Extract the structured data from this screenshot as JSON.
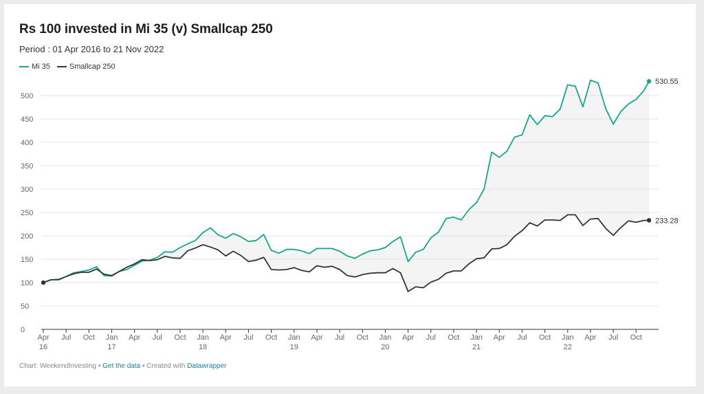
{
  "title": "Rs 100 invested in Mi 35 (v) Smallcap 250",
  "subtitle": "Period : 01 Apr 2016 to 21 Nov 2022",
  "footer": {
    "prefix": "Chart: WeekendInvesting • ",
    "get_data": "Get the data",
    "middle": " • Created with ",
    "tool": "Datawrapper"
  },
  "chart_data": {
    "type": "line",
    "ylim": [
      0,
      550
    ],
    "yticks": [
      0,
      50,
      100,
      150,
      200,
      250,
      300,
      350,
      400,
      450,
      500
    ],
    "grid": true,
    "legend_position": "top-left",
    "xticks": [
      {
        "m": 0,
        "l1": "Apr",
        "l2": "16"
      },
      {
        "m": 3,
        "l1": "Jul",
        "l2": ""
      },
      {
        "m": 6,
        "l1": "Oct",
        "l2": ""
      },
      {
        "m": 9,
        "l1": "Jan",
        "l2": "17"
      },
      {
        "m": 12,
        "l1": "Apr",
        "l2": ""
      },
      {
        "m": 15,
        "l1": "Jul",
        "l2": ""
      },
      {
        "m": 18,
        "l1": "Oct",
        "l2": ""
      },
      {
        "m": 21,
        "l1": "Jan",
        "l2": "18"
      },
      {
        "m": 24,
        "l1": "Apr",
        "l2": ""
      },
      {
        "m": 27,
        "l1": "Jul",
        "l2": ""
      },
      {
        "m": 30,
        "l1": "Oct",
        "l2": ""
      },
      {
        "m": 33,
        "l1": "Jan",
        "l2": "19"
      },
      {
        "m": 36,
        "l1": "Apr",
        "l2": ""
      },
      {
        "m": 39,
        "l1": "Jul",
        "l2": ""
      },
      {
        "m": 42,
        "l1": "Oct",
        "l2": ""
      },
      {
        "m": 45,
        "l1": "Jan",
        "l2": "20"
      },
      {
        "m": 48,
        "l1": "Apr",
        "l2": ""
      },
      {
        "m": 51,
        "l1": "Jul",
        "l2": ""
      },
      {
        "m": 54,
        "l1": "Oct",
        "l2": ""
      },
      {
        "m": 57,
        "l1": "Jan",
        "l2": "21"
      },
      {
        "m": 60,
        "l1": "Apr",
        "l2": ""
      },
      {
        "m": 63,
        "l1": "Jul",
        "l2": ""
      },
      {
        "m": 66,
        "l1": "Oct",
        "l2": ""
      },
      {
        "m": 69,
        "l1": "Jan",
        "l2": "22"
      },
      {
        "m": 72,
        "l1": "Apr",
        "l2": ""
      },
      {
        "m": 75,
        "l1": "Jul",
        "l2": ""
      },
      {
        "m": 78,
        "l1": "Oct",
        "l2": ""
      }
    ],
    "x_end": 79.7,
    "series": [
      {
        "name": "Mi 35",
        "color": "#15a58d",
        "end_label": "530.55",
        "values": [
          [
            0,
            100
          ],
          [
            1,
            106
          ],
          [
            2,
            107
          ],
          [
            3,
            113
          ],
          [
            4,
            121
          ],
          [
            5,
            124
          ],
          [
            6,
            127
          ],
          [
            7,
            134
          ],
          [
            8,
            115
          ],
          [
            9,
            114
          ],
          [
            10,
            124
          ],
          [
            11,
            128
          ],
          [
            12,
            137
          ],
          [
            13,
            146
          ],
          [
            14,
            148
          ],
          [
            15,
            154
          ],
          [
            16,
            166
          ],
          [
            17,
            165
          ],
          [
            18,
            175
          ],
          [
            19,
            183
          ],
          [
            20,
            190
          ],
          [
            21,
            207
          ],
          [
            22,
            217
          ],
          [
            23,
            202
          ],
          [
            24,
            195
          ],
          [
            25,
            205
          ],
          [
            26,
            198
          ],
          [
            27,
            188
          ],
          [
            28,
            190
          ],
          [
            29,
            203
          ],
          [
            30,
            169
          ],
          [
            31,
            163
          ],
          [
            32,
            171
          ],
          [
            33,
            171
          ],
          [
            34,
            168
          ],
          [
            35,
            162
          ],
          [
            36,
            173
          ],
          [
            37,
            173
          ],
          [
            38,
            173
          ],
          [
            39,
            167
          ],
          [
            40,
            157
          ],
          [
            41,
            152
          ],
          [
            42,
            161
          ],
          [
            43,
            168
          ],
          [
            44,
            170
          ],
          [
            45,
            175
          ],
          [
            46,
            188
          ],
          [
            47,
            198
          ],
          [
            48,
            145
          ],
          [
            49,
            165
          ],
          [
            50,
            171
          ],
          [
            51,
            196
          ],
          [
            52,
            208
          ],
          [
            53,
            237
          ],
          [
            54,
            240
          ],
          [
            55,
            234
          ],
          [
            56,
            256
          ],
          [
            57,
            271
          ],
          [
            58,
            300
          ],
          [
            59,
            379
          ],
          [
            60,
            368
          ],
          [
            61,
            381
          ],
          [
            62,
            411
          ],
          [
            63,
            416
          ],
          [
            64,
            459
          ],
          [
            65,
            438
          ],
          [
            66,
            457
          ],
          [
            67,
            455
          ],
          [
            68,
            471
          ],
          [
            69,
            523
          ],
          [
            70,
            520
          ],
          [
            71,
            476
          ],
          [
            72,
            533
          ],
          [
            73,
            527
          ],
          [
            74,
            472
          ],
          [
            75,
            439
          ],
          [
            76,
            466
          ],
          [
            77,
            482
          ],
          [
            78,
            492
          ],
          [
            79,
            510
          ],
          [
            79.7,
            530.55
          ]
        ]
      },
      {
        "name": "Smallcap 250",
        "color": "#333333",
        "end_label": "233.28",
        "values": [
          [
            0,
            100
          ],
          [
            1,
            106
          ],
          [
            2,
            106
          ],
          [
            3,
            113
          ],
          [
            4,
            119
          ],
          [
            5,
            122
          ],
          [
            6,
            122
          ],
          [
            7,
            129
          ],
          [
            8,
            118
          ],
          [
            9,
            115
          ],
          [
            10,
            124
          ],
          [
            11,
            133
          ],
          [
            12,
            140
          ],
          [
            13,
            149
          ],
          [
            14,
            147
          ],
          [
            15,
            149
          ],
          [
            16,
            156
          ],
          [
            17,
            153
          ],
          [
            18,
            152
          ],
          [
            19,
            168
          ],
          [
            20,
            174
          ],
          [
            21,
            181
          ],
          [
            22,
            176
          ],
          [
            23,
            170
          ],
          [
            24,
            157
          ],
          [
            25,
            167
          ],
          [
            26,
            158
          ],
          [
            27,
            145
          ],
          [
            28,
            148
          ],
          [
            29,
            154
          ],
          [
            30,
            128
          ],
          [
            31,
            127
          ],
          [
            32,
            128
          ],
          [
            33,
            132
          ],
          [
            34,
            126
          ],
          [
            35,
            123
          ],
          [
            36,
            136
          ],
          [
            37,
            133
          ],
          [
            38,
            135
          ],
          [
            39,
            128
          ],
          [
            40,
            115
          ],
          [
            41,
            112
          ],
          [
            42,
            117
          ],
          [
            43,
            120
          ],
          [
            44,
            121
          ],
          [
            45,
            121
          ],
          [
            46,
            130
          ],
          [
            47,
            121
          ],
          [
            48,
            81
          ],
          [
            49,
            91
          ],
          [
            50,
            89
          ],
          [
            51,
            101
          ],
          [
            52,
            107
          ],
          [
            53,
            120
          ],
          [
            54,
            125
          ],
          [
            55,
            125
          ],
          [
            56,
            140
          ],
          [
            57,
            151
          ],
          [
            58,
            153
          ],
          [
            59,
            172
          ],
          [
            60,
            173
          ],
          [
            61,
            181
          ],
          [
            62,
            199
          ],
          [
            63,
            211
          ],
          [
            64,
            228
          ],
          [
            65,
            221
          ],
          [
            66,
            234
          ],
          [
            67,
            234
          ],
          [
            68,
            233
          ],
          [
            69,
            245
          ],
          [
            70,
            245
          ],
          [
            71,
            222
          ],
          [
            72,
            236
          ],
          [
            73,
            237
          ],
          [
            74,
            216
          ],
          [
            75,
            201
          ],
          [
            76,
            218
          ],
          [
            77,
            232
          ],
          [
            78,
            229
          ],
          [
            79,
            233
          ],
          [
            79.7,
            233.28
          ]
        ]
      }
    ]
  }
}
